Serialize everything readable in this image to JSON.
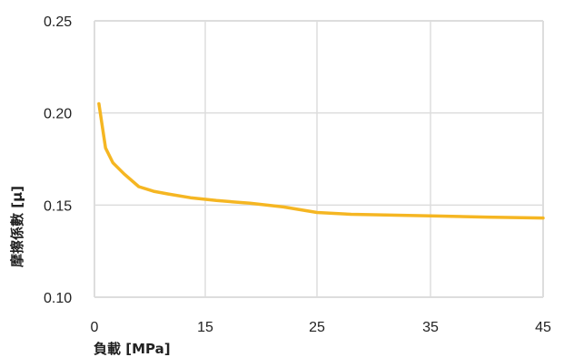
{
  "chart_data": {
    "type": "line",
    "title": "",
    "xlabel": "負載 [MPa]",
    "ylabel": "摩擦係數 [μ]",
    "xlim": [
      0,
      45
    ],
    "ylim": [
      0.1,
      0.25
    ],
    "x_tick_labels": [
      "0",
      "15",
      "25",
      "35",
      "45"
    ],
    "y_tick_labels": [
      "0.10",
      "0.15",
      "0.20",
      "0.25"
    ],
    "grid": true,
    "legend": "none",
    "series_color": "#f5b622",
    "grid_color": "#dddddd",
    "series": [
      {
        "x": [
          0.6,
          1.5,
          2.5,
          4,
          6,
          8,
          10,
          13,
          16,
          19,
          22,
          25,
          28,
          32,
          36,
          40,
          45
        ],
        "y": [
          0.205,
          0.181,
          0.173,
          0.167,
          0.16,
          0.1575,
          0.156,
          0.154,
          0.1525,
          0.151,
          0.149,
          0.146,
          0.145,
          0.1445,
          0.144,
          0.1435,
          0.143
        ]
      }
    ]
  }
}
